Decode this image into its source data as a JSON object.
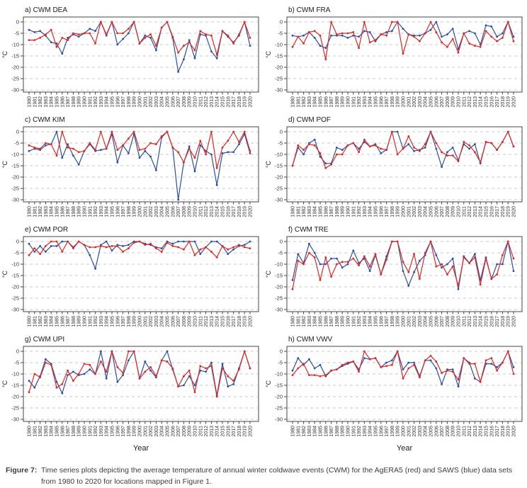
{
  "figure": {
    "caption_label": "Figure 7:",
    "caption_text": "Time series plots depicting the average temperature of annual winter coldwave events (CWM) for the AgERA5 (red) and SAWS (blue) data sets from 1980 to 2020 for locations mapped in Figure 1."
  },
  "colors": {
    "agera5_red": "#e02823",
    "saws_blue": "#2d4fa2",
    "grid": "#c9c9c9",
    "axis": "#444444",
    "tick_label": "#333333",
    "title": "#1a1a1a"
  },
  "axes": {
    "ylabel": "°C",
    "xlabel": "Year",
    "yticks": [
      0,
      -5,
      -10,
      -15,
      -20,
      -25,
      -30
    ],
    "ylim": [
      -32,
      0
    ],
    "years": [
      1980,
      1981,
      1982,
      1983,
      1984,
      1985,
      1986,
      1987,
      1988,
      1989,
      1990,
      1991,
      1992,
      1993,
      1994,
      1995,
      1996,
      1997,
      1998,
      1999,
      2000,
      2001,
      2002,
      2003,
      2004,
      2005,
      2006,
      2007,
      2008,
      2009,
      2010,
      2011,
      2012,
      2013,
      2014,
      2015,
      2016,
      2017,
      2018,
      2019,
      2020
    ]
  },
  "chart_data": [
    {
      "id": "a",
      "type": "line",
      "title": "a) CWM DEA",
      "show_xlabel": false,
      "series": [
        {
          "name": "SAWS",
          "color_key": "saws_blue",
          "values": [
            -3.5,
            -4.5,
            -4,
            -6,
            -9,
            -9.5,
            -14,
            -7,
            -5.5,
            -6.5,
            -5,
            -3,
            -4,
            0,
            -6,
            0,
            -10,
            -7.5,
            -5,
            0,
            -9.5,
            -6,
            -7,
            -12.5,
            -2.5,
            0,
            -7,
            -22,
            -16.5,
            -8,
            -16,
            -5.5,
            -6,
            -13,
            -16,
            -4,
            -6.5,
            -9,
            -6,
            0,
            -10.5
          ]
        },
        {
          "name": "AgERA5",
          "color_key": "agera5_red",
          "values": [
            -8,
            -8,
            -7,
            -5.5,
            -3.5,
            -11,
            -7,
            -8,
            -5,
            -5.5,
            -5,
            -5,
            -9.5,
            0,
            -5.5,
            0,
            -5,
            -5,
            -3,
            0,
            -9.5,
            -7,
            -5.5,
            -10.5,
            -2.5,
            0,
            -6.5,
            -13.5,
            -10.5,
            -9,
            -12.5,
            -4,
            -5.5,
            -6,
            -14.5,
            -4,
            -6,
            -9.5,
            -5.5,
            0,
            -7
          ]
        }
      ]
    },
    {
      "id": "b",
      "type": "line",
      "title": "b) CWM FRA",
      "show_xlabel": false,
      "series": [
        {
          "name": "SAWS",
          "color_key": "saws_blue",
          "values": [
            -6,
            -6.5,
            -6,
            -4.5,
            -7,
            -10.5,
            -11.5,
            -6,
            -6,
            -6,
            -7,
            -6,
            -6.5,
            -4,
            -4.5,
            -8.5,
            -5.5,
            -4.5,
            -4,
            0,
            -3,
            -5.5,
            -6,
            -6,
            -5,
            -3.5,
            0,
            -6.5,
            -5.5,
            -3,
            -12,
            -5,
            -4,
            -5,
            -10,
            -1.5,
            -2,
            -6.5,
            -5,
            0,
            -6.5
          ]
        },
        {
          "name": "AgERA5",
          "color_key": "agera5_red",
          "values": [
            -11,
            -6.5,
            -9.5,
            -4.5,
            -4,
            -6,
            -16.5,
            0,
            -5.5,
            -5,
            -5,
            -4.5,
            -11.5,
            0,
            -9,
            -8,
            -5.5,
            -6,
            0,
            0,
            -14,
            -5.5,
            -6.5,
            -8.5,
            -5,
            0,
            -4.5,
            -9,
            -11,
            -7.5,
            -13.5,
            -5,
            -9.5,
            -10.5,
            -11,
            -4,
            -6.5,
            -8.5,
            -7,
            0,
            -8.5
          ]
        }
      ]
    },
    {
      "id": "c",
      "type": "line",
      "title": "c) CWM KIM",
      "show_xlabel": false,
      "series": [
        {
          "name": "SAWS",
          "color_key": "saws_blue",
          "values": [
            -8.5,
            -7.5,
            -8,
            -6,
            -5.5,
            0,
            -11.5,
            -5.5,
            -10.5,
            -14.5,
            -8.5,
            -5.5,
            -8.5,
            -8,
            -7.5,
            -1,
            -13.5,
            -6,
            -9.5,
            -1,
            -11.5,
            -8.5,
            -11,
            -17,
            -2.5,
            0,
            -7,
            -30,
            -13.5,
            -6.5,
            -17.5,
            -6,
            -8.5,
            -10,
            -23.5,
            -9.5,
            -9,
            -9,
            -5.5,
            -1,
            -9.5
          ]
        },
        {
          "name": "AgERA5",
          "color_key": "agera5_red",
          "values": [
            -6,
            -7,
            -7.5,
            -5,
            -5.5,
            -10.5,
            0,
            -7,
            -7.5,
            -9,
            -8.5,
            -5,
            -8,
            0,
            -7.5,
            0,
            -8,
            -6,
            -3,
            0,
            -8,
            -7.5,
            -5,
            -5.5,
            -2,
            0,
            -7,
            -9,
            -13.5,
            -7.5,
            -11.5,
            -4,
            -10,
            0,
            -16,
            -7,
            -4,
            0,
            -4.5,
            0,
            -8.5
          ]
        }
      ]
    },
    {
      "id": "d",
      "type": "line",
      "title": "d) CWM POF",
      "show_xlabel": false,
      "series": [
        {
          "name": "SAWS",
          "color_key": "saws_blue",
          "values": [
            -15,
            -7,
            -10,
            -5,
            -3.5,
            -11,
            -14,
            -14,
            -7,
            -8,
            -6,
            -5,
            -7.5,
            -4.5,
            -6.5,
            -5.5,
            -9.5,
            -8,
            0,
            0,
            -7.5,
            -5.5,
            -8.5,
            -8,
            -7,
            0,
            -7.5,
            -15.5,
            -9,
            -7,
            -12.5,
            -5.5,
            -7.5,
            -5.5,
            -14,
            -4.5,
            -5,
            -8,
            -4.5,
            0,
            -6.5
          ]
        },
        {
          "name": "AgERA5",
          "color_key": "agera5_red",
          "values": [
            -15,
            -6,
            -8,
            -5.5,
            -6,
            -9.5,
            -16,
            -14.5,
            -10,
            -10,
            -6,
            -5,
            -9,
            -3.5,
            -6.5,
            -6,
            -7.5,
            -8,
            0,
            -10,
            -7.5,
            -2,
            -7,
            -8.5,
            -5.5,
            0,
            -5,
            -9,
            -10.5,
            -10.5,
            -13,
            -4.5,
            -6,
            -9,
            -13.5,
            -4.5,
            -5,
            -8,
            -4.5,
            0,
            -6.5
          ]
        }
      ]
    },
    {
      "id": "e",
      "type": "line",
      "title": "e) CWM POR",
      "show_xlabel": false,
      "series": [
        {
          "name": "SAWS",
          "color_key": "saws_blue",
          "values": [
            -1,
            -4.5,
            -2,
            -4.5,
            -2,
            -2,
            0,
            0,
            -2.5,
            0,
            -1.5,
            -6,
            -12,
            -1.5,
            0,
            -4,
            -1.5,
            -2,
            -1.5,
            0,
            0,
            -1,
            -1.5,
            -2.5,
            -3,
            0,
            -1,
            0,
            0,
            0,
            0,
            -5.5,
            -2.5,
            0,
            0,
            -2,
            -5.5,
            -3.5,
            -2,
            -1.5,
            0
          ]
        },
        {
          "name": "AgERA5",
          "color_key": "agera5_red",
          "values": [
            -6,
            -3,
            -5.5,
            -2,
            0,
            0,
            -4.5,
            0,
            -3,
            0,
            -1.5,
            -2.5,
            -2.5,
            -2,
            -2.5,
            -2,
            -2,
            -4.5,
            -3,
            -0.5,
            0,
            -1.5,
            -1,
            -3,
            -4.5,
            -0.5,
            -2,
            -2.5,
            -3.5,
            0,
            -6,
            -3.5,
            -2.5,
            -4.5,
            -7,
            -2,
            -3.5,
            -2.5,
            -1.5,
            -2.5,
            -3
          ]
        }
      ]
    },
    {
      "id": "f",
      "type": "line",
      "title": "f) CWM TRE",
      "show_xlabel": false,
      "series": [
        {
          "name": "SAWS",
          "color_key": "saws_blue",
          "values": [
            -17,
            -5.5,
            -9.5,
            -1,
            -5,
            -10,
            -10,
            -7.5,
            -7.5,
            -11.5,
            -10,
            -4,
            -9.5,
            -7.5,
            -13,
            -6,
            -14.5,
            -6.5,
            0,
            0,
            -13,
            -19.5,
            -13.5,
            -8.5,
            -6,
            0,
            -6,
            -11.5,
            -10,
            -7.5,
            -21,
            -6.5,
            -9.5,
            -5.5,
            -17,
            -7,
            -16.5,
            -10,
            -10,
            0,
            -13
          ]
        },
        {
          "name": "AgERA5",
          "color_key": "agera5_red",
          "values": [
            -21,
            -8.5,
            -10,
            -5,
            -7,
            -17,
            -7,
            -15.5,
            -10,
            -9,
            -9,
            -7.5,
            -10.5,
            -6.5,
            -11,
            -5.5,
            -14.5,
            -8,
            0,
            0,
            -9,
            -13.5,
            -5.5,
            -16.5,
            -5,
            0,
            -11,
            -10,
            -14.5,
            -11,
            -19.5,
            -7,
            -9.5,
            -7,
            -19,
            -7.5,
            -16.5,
            -14.5,
            -6,
            0,
            -7.5
          ]
        }
      ]
    },
    {
      "id": "g",
      "type": "line",
      "title": "g) CWM UPI",
      "show_xlabel": true,
      "series": [
        {
          "name": "SAWS",
          "color_key": "saws_blue",
          "values": [
            -13,
            -16,
            -11,
            -3.5,
            -5.5,
            -13.5,
            -18.5,
            -10.5,
            -9,
            -10.5,
            -10,
            -8,
            -10,
            0,
            -12,
            0,
            -13.5,
            -10.5,
            -4,
            0,
            -12,
            -4.5,
            -8.5,
            -11.5,
            -4,
            0,
            -8,
            -15.5,
            -15,
            -11,
            -15,
            -8.5,
            -9,
            -5,
            -19.5,
            -5.5,
            -15.5,
            -14.5,
            -7.5,
            0,
            -7.5
          ]
        },
        {
          "name": "AgERA5",
          "color_key": "agera5_red",
          "values": [
            -18,
            -10,
            -11.5,
            -5,
            -6,
            -16,
            -14.5,
            -8.5,
            -13,
            -10,
            -5.5,
            -6,
            -10,
            -4.5,
            -9,
            0,
            -7,
            -9.5,
            0,
            0,
            -12,
            -9,
            -7,
            -11,
            -4,
            -4.5,
            -7.5,
            -15.5,
            -11,
            -8.5,
            -18,
            -6.5,
            -7.5,
            -6.5,
            -20,
            -7.5,
            -11,
            -13,
            -8,
            0,
            -7.5
          ]
        }
      ]
    },
    {
      "id": "h",
      "type": "line",
      "title": "h) CWM VWV",
      "show_xlabel": true,
      "series": [
        {
          "name": "SAWS",
          "color_key": "saws_blue",
          "values": [
            -8.5,
            -3,
            -6,
            -3.5,
            -7.5,
            -6,
            -11,
            -8.5,
            -8,
            -6.5,
            -5.5,
            -4.5,
            -8,
            -3,
            -3.5,
            -3,
            -7,
            -5,
            -4,
            0,
            -8,
            -5,
            -5,
            -11,
            -4,
            -4,
            -7.5,
            -14.5,
            -8,
            -8,
            -15.5,
            -3,
            -5,
            -12,
            -13.5,
            -5.5,
            -5.5,
            -7,
            -5,
            0,
            -7
          ]
        },
        {
          "name": "AgERA5",
          "color_key": "agera5_red",
          "values": [
            -10.5,
            -7.5,
            -5.5,
            -10.5,
            -10.5,
            -11,
            -10.5,
            -8.5,
            -8,
            -6,
            -5,
            -4.5,
            -9,
            0,
            -3.5,
            -3,
            -7,
            -6.5,
            -6,
            0,
            -12,
            -7.5,
            -6,
            -11.5,
            -4,
            -2,
            -4.5,
            -9.5,
            -8.5,
            -9,
            -12.5,
            -3,
            -5.5,
            -5.5,
            -13.5,
            -4,
            -3,
            -8.5,
            -5,
            0,
            -10
          ]
        }
      ]
    }
  ]
}
